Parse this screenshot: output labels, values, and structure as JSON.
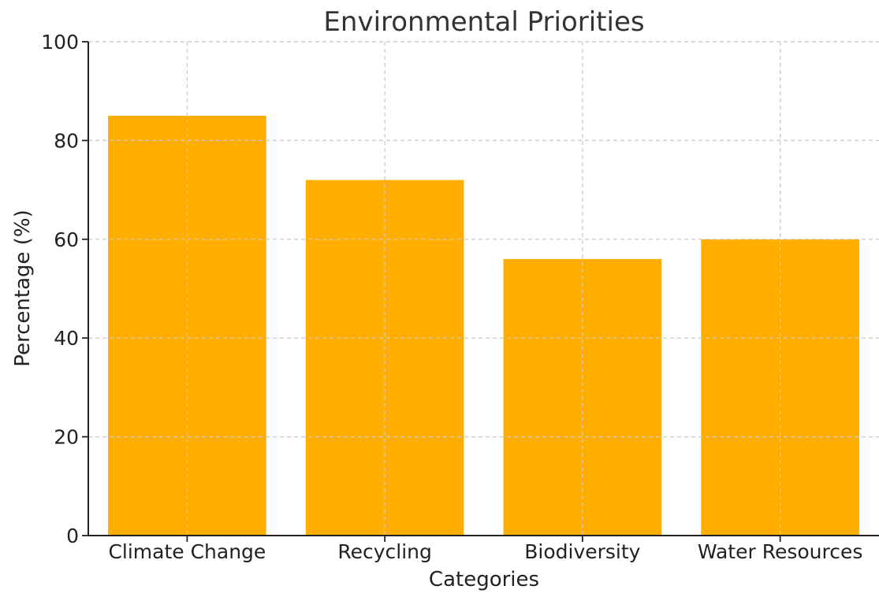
{
  "chart_data": {
    "type": "bar",
    "title": "Environmental Priorities",
    "xlabel": "Categories",
    "ylabel": "Percentage (%)",
    "categories": [
      "Climate Change",
      "Recycling",
      "Biodiversity",
      "Water Resources"
    ],
    "values": [
      85,
      72,
      56,
      60
    ],
    "ylim": [
      0,
      100
    ],
    "yticks": [
      0,
      20,
      40,
      60,
      80,
      100
    ],
    "grid": true,
    "bar_color": "#FFAE00"
  }
}
